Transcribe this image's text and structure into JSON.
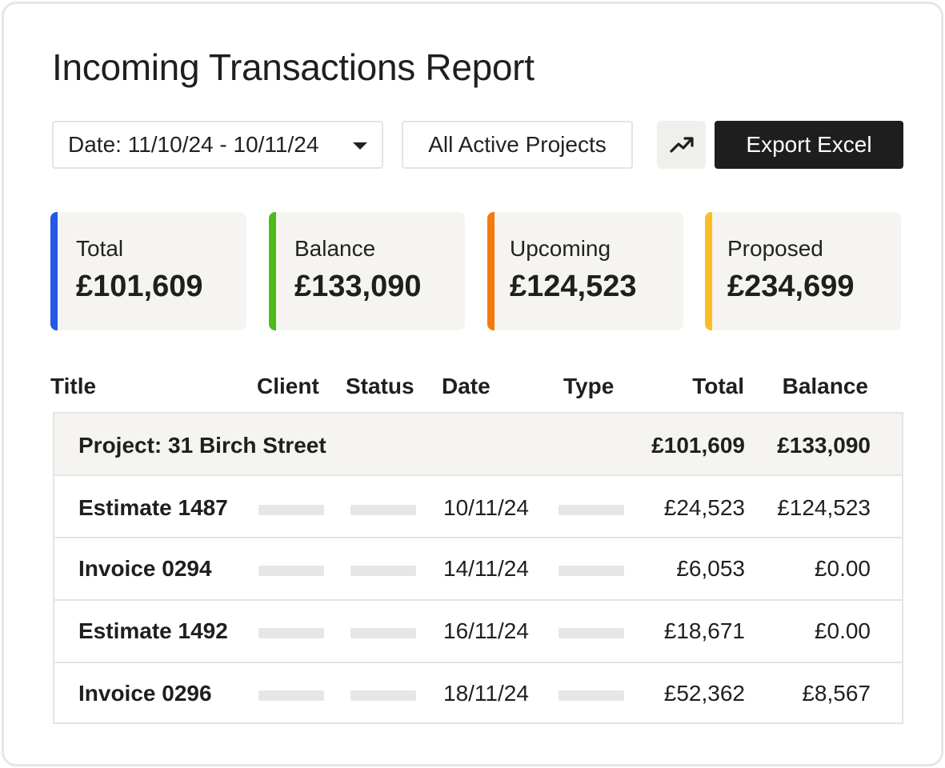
{
  "title": "Incoming Transactions Report",
  "filters": {
    "date_label": "Date: 11/10/24 - 10/11/24",
    "projects_label": "All Active Projects",
    "trend_icon": "trending-up-icon",
    "export_label": "Export Excel"
  },
  "stats": [
    {
      "label": "Total",
      "value": "£101,609",
      "color": "#2458e6"
    },
    {
      "label": "Balance",
      "value": "£133,090",
      "color": "#4cbb17"
    },
    {
      "label": "Upcoming",
      "value": "£124,523",
      "color": "#f47a0b"
    },
    {
      "label": "Proposed",
      "value": "£234,699",
      "color": "#fbbd21"
    }
  ],
  "table": {
    "headers": {
      "title": "Title",
      "client": "Client",
      "status": "Status",
      "date": "Date",
      "type": "Type",
      "total": "Total",
      "balance": "Balance"
    },
    "group": {
      "title": "Project: 31 Birch Street",
      "total": "£101,609",
      "balance": "£133,090"
    },
    "rows": [
      {
        "title": "Estimate 1487",
        "date": "10/11/24",
        "total": "£24,523",
        "balance": "£124,523"
      },
      {
        "title": "Invoice 0294",
        "date": "14/11/24",
        "total": "£6,053",
        "balance": "£0.00"
      },
      {
        "title": "Estimate 1492",
        "date": "16/11/24",
        "total": "£18,671",
        "balance": "£0.00"
      },
      {
        "title": "Invoice 0296",
        "date": "18/11/24",
        "total": "£52,362",
        "balance": "£8,567"
      }
    ]
  }
}
